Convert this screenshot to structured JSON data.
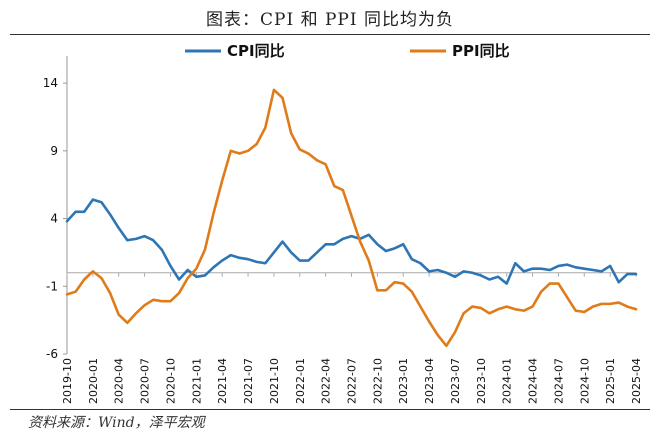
{
  "header": {
    "title": "图表：CPI 和 PPI 同比均为负"
  },
  "footer": {
    "source": "资料来源：Wind，泽平宏观"
  },
  "chart_data": {
    "type": "line",
    "title": "",
    "xlabel": "",
    "ylabel": "",
    "ylim": [
      -6,
      16
    ],
    "yticks": [
      14,
      9,
      4,
      -1,
      -6
    ],
    "legend": "top",
    "grid": false,
    "x": [
      "2019-10",
      "2019-11",
      "2019-12",
      "2020-01",
      "2020-02",
      "2020-03",
      "2020-04",
      "2020-05",
      "2020-06",
      "2020-07",
      "2020-08",
      "2020-09",
      "2020-10",
      "2020-11",
      "2020-12",
      "2021-01",
      "2021-02",
      "2021-03",
      "2021-04",
      "2021-05",
      "2021-06",
      "2021-07",
      "2021-08",
      "2021-09",
      "2021-10",
      "2021-11",
      "2021-12",
      "2022-01",
      "2022-02",
      "2022-03",
      "2022-04",
      "2022-05",
      "2022-06",
      "2022-07",
      "2022-08",
      "2022-09",
      "2022-10",
      "2022-11",
      "2022-12",
      "2023-01",
      "2023-02",
      "2023-03",
      "2023-04",
      "2023-05",
      "2023-06",
      "2023-07",
      "2023-08",
      "2023-09",
      "2023-10",
      "2023-11",
      "2023-12",
      "2024-01",
      "2024-02",
      "2024-03",
      "2024-04",
      "2024-05",
      "2024-06",
      "2024-07",
      "2024-08",
      "2024-09",
      "2024-10",
      "2024-11",
      "2024-12",
      "2025-01",
      "2025-02",
      "2025-03",
      "2025-04"
    ],
    "xtick_labels": [
      "2019-10",
      "2020-01",
      "2020-04",
      "2020-07",
      "2020-10",
      "2021-01",
      "2021-04",
      "2021-07",
      "2021-10",
      "2022-01",
      "2022-04",
      "2022-07",
      "2022-10",
      "2023-01",
      "2023-04",
      "2023-07",
      "2023-10",
      "2024-01",
      "2024-04",
      "2024-07",
      "2024-10",
      "2025-01",
      "2025-04"
    ],
    "series": [
      {
        "name": "CPI同比",
        "color": "#2e75b6",
        "values": [
          3.8,
          4.5,
          4.5,
          5.4,
          5.2,
          4.3,
          3.3,
          2.4,
          2.5,
          2.7,
          2.4,
          1.7,
          0.5,
          -0.5,
          0.2,
          -0.3,
          -0.2,
          0.4,
          0.9,
          1.3,
          1.1,
          1.0,
          0.8,
          0.7,
          1.5,
          2.3,
          1.5,
          0.9,
          0.9,
          1.5,
          2.1,
          2.1,
          2.5,
          2.7,
          2.5,
          2.8,
          2.1,
          1.6,
          1.8,
          2.1,
          1.0,
          0.7,
          0.1,
          0.2,
          0.0,
          -0.3,
          0.1,
          0.0,
          -0.2,
          -0.5,
          -0.3,
          -0.8,
          0.7,
          0.1,
          0.3,
          0.3,
          0.2,
          0.5,
          0.6,
          0.4,
          0.3,
          0.2,
          0.1,
          0.5,
          -0.7,
          -0.1,
          -0.1
        ]
      },
      {
        "name": "PPI同比",
        "color": "#e07b1a",
        "values": [
          -1.6,
          -1.4,
          -0.5,
          0.1,
          -0.4,
          -1.5,
          -3.1,
          -3.7,
          -3.0,
          -2.4,
          -2.0,
          -2.1,
          -2.1,
          -1.5,
          -0.4,
          0.3,
          1.7,
          4.4,
          6.8,
          9.0,
          8.8,
          9.0,
          9.5,
          10.7,
          13.5,
          12.9,
          10.3,
          9.1,
          8.8,
          8.3,
          8.0,
          6.4,
          6.1,
          4.2,
          2.3,
          0.9,
          -1.3,
          -1.3,
          -0.7,
          -0.8,
          -1.4,
          -2.5,
          -3.6,
          -4.6,
          -5.4,
          -4.4,
          -3.0,
          -2.5,
          -2.6,
          -3.0,
          -2.7,
          -2.5,
          -2.7,
          -2.8,
          -2.5,
          -1.4,
          -0.8,
          -0.8,
          -1.8,
          -2.8,
          -2.9,
          -2.5,
          -2.3,
          -2.3,
          -2.2,
          -2.5,
          -2.7
        ]
      }
    ]
  }
}
